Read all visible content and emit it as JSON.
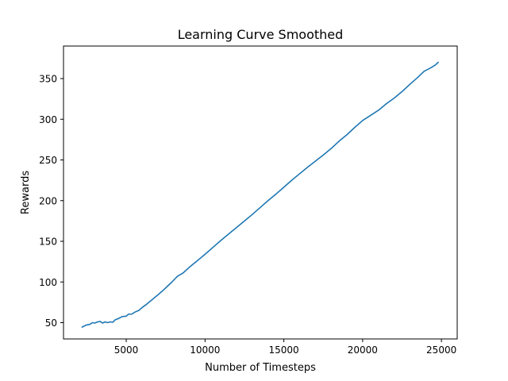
{
  "chart_data": {
    "type": "line",
    "title": "Learning Curve Smoothed",
    "xlabel": "Number of Timesteps",
    "ylabel": "Rewards",
    "xlim": [
      1020,
      26000
    ],
    "ylim": [
      30,
      390
    ],
    "xticks": [
      5000,
      10000,
      15000,
      20000,
      25000
    ],
    "yticks": [
      50,
      100,
      150,
      200,
      250,
      300,
      350
    ],
    "grid": false,
    "series": [
      {
        "color": "#1f77b4",
        "x": [
          2200,
          2450,
          2700,
          2850,
          3000,
          3200,
          3350,
          3500,
          3650,
          3800,
          4000,
          4150,
          4300,
          4500,
          4750,
          5000,
          5150,
          5350,
          5550,
          5800,
          6000,
          6250,
          6500,
          6750,
          7000,
          7300,
          7600,
          7900,
          8250,
          8600,
          9000,
          9500,
          10000,
          10500,
          11000,
          11500,
          12000,
          12500,
          13000,
          13500,
          14000,
          14500,
          15000,
          15500,
          16000,
          16500,
          16900,
          17100,
          17500,
          18000,
          18500,
          19000,
          19500,
          20000,
          20400,
          21000,
          21500,
          22000,
          22500,
          23000,
          23500,
          23900,
          24300,
          24600,
          24800
        ],
        "y": [
          44.5,
          47,
          48,
          50,
          49.5,
          51,
          51.5,
          49.5,
          51,
          50,
          51,
          50.5,
          53.5,
          55,
          57.5,
          58,
          60.5,
          60.5,
          63,
          65,
          68.5,
          72,
          76,
          80,
          84,
          89,
          94.5,
          100,
          107,
          111,
          118,
          126,
          134,
          142.5,
          151,
          159,
          167,
          175,
          183,
          191.5,
          200,
          208,
          216.5,
          225,
          233,
          241,
          247,
          250,
          256,
          264,
          273,
          281,
          290,
          298.5,
          303.5,
          311,
          319,
          326,
          334,
          343,
          351.5,
          359,
          363,
          366.5,
          370
        ]
      }
    ]
  }
}
